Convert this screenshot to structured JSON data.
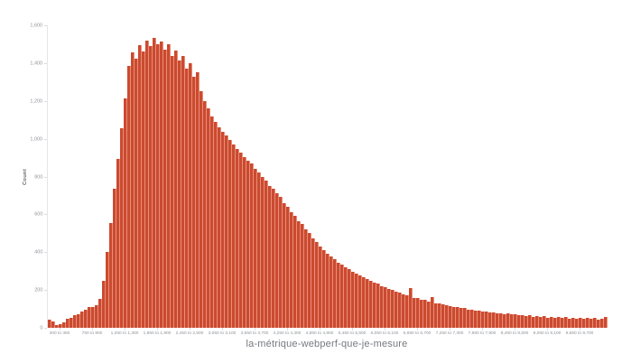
{
  "chart_data": {
    "type": "bar",
    "subtype": "histogram",
    "title": "",
    "xlabel": "la-métrique-webperf-que-je-mesure",
    "ylabel": "Count",
    "ylim": [
      0,
      1600
    ],
    "grid": "off",
    "legend": "none",
    "y_tick_labels": [
      "0",
      "200",
      "400",
      "600",
      "800",
      "1,000",
      "1,200",
      "1,400",
      "1,600"
    ],
    "x_tick_labels": [
      "300 to 350",
      "750 to 800",
      "1,250 to 1,300",
      "1,850 to 1,900",
      "2,450 to 2,500",
      "3,050 to 3,100",
      "3,650 to 3,700",
      "4,250 to 4,300",
      "4,850 to 4,900",
      "5,450 to 5,500",
      "6,050 to 6,100",
      "6,650 to 6,700",
      "7,250 to 7,300",
      "7,850 to 7,900",
      "8,450 to 8,500",
      "9,050 to 9,100",
      "9,650 to 9,700"
    ],
    "values": [
      45,
      34,
      14,
      21,
      30,
      46,
      54,
      66,
      71,
      87,
      97,
      110,
      112,
      121,
      152,
      248,
      402,
      555,
      735,
      895,
      1055,
      1215,
      1385,
      1455,
      1425,
      1495,
      1460,
      1520,
      1490,
      1535,
      1500,
      1515,
      1470,
      1498,
      1440,
      1468,
      1415,
      1438,
      1372,
      1398,
      1330,
      1352,
      1250,
      1200,
      1160,
      1120,
      1090,
      1060,
      1038,
      1018,
      992,
      968,
      945,
      928,
      902,
      882,
      868,
      842,
      822,
      798,
      778,
      752,
      735,
      712,
      692,
      658,
      638,
      612,
      592,
      565,
      548,
      520,
      502,
      475,
      452,
      432,
      412,
      392,
      376,
      362,
      346,
      334,
      320,
      310,
      298,
      288,
      277,
      268,
      257,
      249,
      239,
      232,
      222,
      216,
      207,
      201,
      192,
      187,
      178,
      174,
      210,
      160,
      158,
      150,
      148,
      140,
      165,
      131,
      127,
      125,
      118,
      117,
      110,
      111,
      103,
      104,
      97,
      98,
      91,
      92,
      86,
      88,
      81,
      83,
      77,
      79,
      73,
      76,
      70,
      73,
      66,
      69,
      62,
      66,
      59,
      63,
      57,
      61,
      55,
      59,
      53,
      57,
      51,
      56,
      49,
      54,
      48,
      53,
      47,
      52,
      46,
      51,
      45,
      50,
      58
    ],
    "colors": {
      "bar": "#cb4a30",
      "bar_gap": "#e78f79",
      "axis_line": "#e6e6e6",
      "tick_label": "#8f9399",
      "axis_title": "#5f6368",
      "x_title": "#75797f",
      "background": "#ffffff"
    }
  }
}
